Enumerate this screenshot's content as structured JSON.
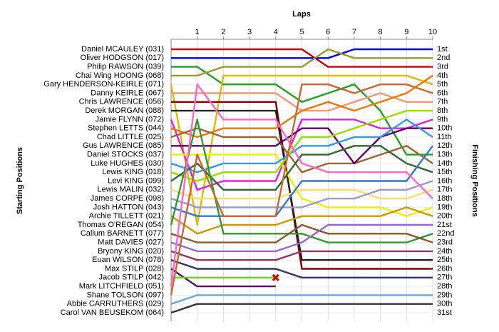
{
  "chart_data": {
    "type": "lap",
    "title": "Laps",
    "y_label": "Starting Positions",
    "y2_label": "Finishing Positions",
    "x": [
      0,
      1,
      2,
      3,
      4,
      5,
      6,
      7,
      8,
      9,
      10
    ],
    "xlim": [
      0,
      10
    ],
    "xticks": [
      1,
      2,
      3,
      4,
      5,
      6,
      7,
      8,
      9,
      10
    ],
    "ylim": [
      31,
      1
    ],
    "grid": true,
    "yticks": [
      {
        "value": 1,
        "label": "1st"
      },
      {
        "value": 2,
        "label": "2nd"
      },
      {
        "value": 3,
        "label": "3rd"
      },
      {
        "value": 4,
        "label": "4th"
      },
      {
        "value": 5,
        "label": "5th"
      },
      {
        "value": 6,
        "label": "6th"
      },
      {
        "value": 7,
        "label": "7th"
      },
      {
        "value": 8,
        "label": "8th"
      },
      {
        "value": 9,
        "label": "9th"
      },
      {
        "value": 10,
        "label": "10th"
      },
      {
        "value": 11,
        "label": "11th"
      },
      {
        "value": 12,
        "label": "12th"
      },
      {
        "value": 13,
        "label": "13th"
      },
      {
        "value": 14,
        "label": "14th"
      },
      {
        "value": 15,
        "label": "15th"
      },
      {
        "value": 16,
        "label": "16th"
      },
      {
        "value": 17,
        "label": "17th"
      },
      {
        "value": 18,
        "label": "18th"
      },
      {
        "value": 19,
        "label": "19th"
      },
      {
        "value": 20,
        "label": "20th"
      },
      {
        "value": 21,
        "label": "21st"
      },
      {
        "value": 22,
        "label": "22nd"
      },
      {
        "value": 23,
        "label": "23rd"
      },
      {
        "value": 24,
        "label": "24th"
      },
      {
        "value": 25,
        "label": "25th"
      },
      {
        "value": 26,
        "label": "26th"
      },
      {
        "value": 27,
        "label": "27th"
      },
      {
        "value": 28,
        "label": "28th"
      },
      {
        "value": 29,
        "label": "29th"
      },
      {
        "value": 30,
        "label": "30th"
      },
      {
        "value": 31,
        "label": "31st"
      }
    ],
    "series": [
      {
        "name": "Daniel MCAULEY (031)",
        "color": "#cc0000",
        "values": [
          1,
          1,
          1,
          1,
          1,
          1,
          3,
          3,
          3,
          3,
          3
        ]
      },
      {
        "name": "Oliver HODGSON (017)",
        "color": "#0000dd",
        "values": [
          2,
          2,
          2,
          2,
          2,
          2,
          2,
          1,
          1,
          1,
          1
        ]
      },
      {
        "name": "Philip RAWSON (039)",
        "color": "#22a022",
        "values": [
          3,
          3,
          5,
          5,
          5,
          7,
          6,
          5,
          8,
          13,
          13
        ]
      },
      {
        "name": "Chai Wing HOONG (068)",
        "color": "#999933",
        "values": [
          4,
          4,
          3,
          3,
          3,
          3,
          1,
          2,
          2,
          2,
          2
        ]
      },
      {
        "name": "Gary HENDERSON-KEIRLE (071)",
        "color": "#ddbb00",
        "values": [
          5,
          21,
          4,
          4,
          4,
          4,
          4,
          4,
          4,
          4,
          5
        ]
      },
      {
        "name": "Danny KEIRLE (067)",
        "color": "#ee9977",
        "values": [
          6,
          6,
          6,
          6,
          6,
          8,
          8,
          7,
          6,
          7,
          7
        ]
      },
      {
        "name": "Chris LAWRENCE (056)",
        "color": "#800000",
        "values": [
          7,
          7,
          7,
          7,
          7,
          26,
          26,
          26,
          26,
          26,
          26
        ]
      },
      {
        "name": "Derek MORGAN (088)",
        "color": "#222222",
        "values": [
          8,
          8,
          8,
          8,
          8,
          25,
          25,
          25,
          25,
          25,
          25
        ]
      },
      {
        "name": "Jamie FLYNN (072)",
        "color": "#dd22dd",
        "values": [
          9,
          17,
          16,
          16,
          16,
          9,
          9,
          9,
          10,
          10,
          9
        ]
      },
      {
        "name": "Stephen LETTS (044)",
        "color": "#ee7700",
        "values": [
          10,
          11,
          10,
          10,
          10,
          8,
          7,
          8,
          7,
          6,
          4
        ]
      },
      {
        "name": "Chad LITTLE (025)",
        "color": "#996633",
        "values": [
          11,
          10,
          11,
          11,
          11,
          15,
          14,
          14,
          13,
          12,
          14
        ]
      },
      {
        "name": "Gus LAWRENCE (085)",
        "color": "#660066",
        "values": [
          12,
          12,
          12,
          12,
          12,
          10,
          10,
          14,
          11,
          10,
          10
        ]
      },
      {
        "name": "Daniel STOCKS (037)",
        "color": "#eeee00",
        "values": [
          13,
          13,
          13,
          13,
          13,
          18,
          19,
          19,
          19,
          20,
          19
        ]
      },
      {
        "name": "Luke HUGHES (030)",
        "color": "#3399ee",
        "values": [
          14,
          15,
          14,
          14,
          14,
          12,
          12,
          11,
          11,
          9,
          11
        ]
      },
      {
        "name": "Lewis KING (018)",
        "color": "#99dd00",
        "values": [
          15,
          16,
          15,
          15,
          15,
          11,
          11,
          10,
          9,
          8,
          8
        ]
      },
      {
        "name": "Levi KING (099)",
        "color": "#336633",
        "values": [
          16,
          14,
          17,
          17,
          17,
          13,
          13,
          12,
          12,
          14,
          15
        ]
      },
      {
        "name": "Lewis MALIN (032)",
        "color": "#ffdd66",
        "values": [
          17,
          18,
          18,
          18,
          18,
          17,
          17,
          17,
          18,
          18,
          17
        ]
      },
      {
        "name": "James CORPE (098)",
        "color": "#9999cc",
        "values": [
          18,
          19,
          19,
          19,
          19,
          19,
          18,
          18,
          17,
          17,
          16
        ]
      },
      {
        "name": "Josh HATTON (043)",
        "color": "#3377cc",
        "values": [
          19,
          20,
          20,
          20,
          20,
          16,
          16,
          16,
          16,
          16,
          12
        ]
      },
      {
        "name": "Archie TILLETT (021)",
        "color": "#cc9900",
        "values": [
          20,
          22,
          21,
          21,
          21,
          20,
          20,
          20,
          20,
          19,
          20
        ]
      },
      {
        "name": "Thomas O'REGAN (054)",
        "color": "#339933",
        "values": [
          21,
          9,
          22,
          22,
          22,
          22,
          23,
          23,
          23,
          23,
          22
        ]
      },
      {
        "name": "Callum BARNETT (077)",
        "color": "#8b5a2b",
        "values": [
          22,
          23,
          23,
          23,
          23,
          21,
          22,
          22,
          22,
          22,
          23
        ]
      },
      {
        "name": "Matt DAVIES (027)",
        "color": "#9966cc",
        "values": [
          23,
          24,
          24,
          24,
          24,
          23,
          21,
          21,
          21,
          21,
          21
        ]
      },
      {
        "name": "Bryony KING (020)",
        "color": "#993366",
        "values": [
          24,
          25,
          25,
          25,
          25,
          24,
          24,
          24,
          24,
          24,
          24
        ]
      },
      {
        "name": "Euan WILSON (078)",
        "color": "#333366",
        "values": [
          25,
          26,
          26,
          26,
          26,
          27,
          27,
          27,
          27,
          27,
          27
        ]
      },
      {
        "name": "Max STILP (028)",
        "color": "#551155",
        "values": [
          26,
          28,
          28,
          28,
          28,
          null,
          null,
          null,
          null,
          null,
          null
        ]
      },
      {
        "name": "Jacob STILP (042)",
        "color": "#66cc33",
        "end_marker": "x",
        "values": [
          27,
          27,
          27,
          27,
          27,
          null,
          null,
          null,
          null,
          null,
          null
        ]
      },
      {
        "name": "Mark LITCHFIELD (051)",
        "color": "#ff66cc",
        "values": [
          28,
          5,
          9,
          9,
          9,
          14,
          15,
          15,
          15,
          15,
          18
        ]
      },
      {
        "name": "Shane TOLSON (097)",
        "color": "#cc6633",
        "values": [
          29,
          13,
          20,
          20,
          20,
          5,
          5,
          6,
          5,
          5,
          6
        ]
      },
      {
        "name": "Abbie CARRUTHERS (029)",
        "color": "#66aadd",
        "values": [
          30,
          29,
          29,
          29,
          29,
          29,
          29,
          29,
          29,
          29,
          29
        ]
      },
      {
        "name": "Carol VAN BEUSEKOM (064)",
        "color": "#333344",
        "values": [
          31,
          30,
          30,
          30,
          30,
          30,
          30,
          30,
          30,
          30,
          30
        ]
      }
    ]
  }
}
